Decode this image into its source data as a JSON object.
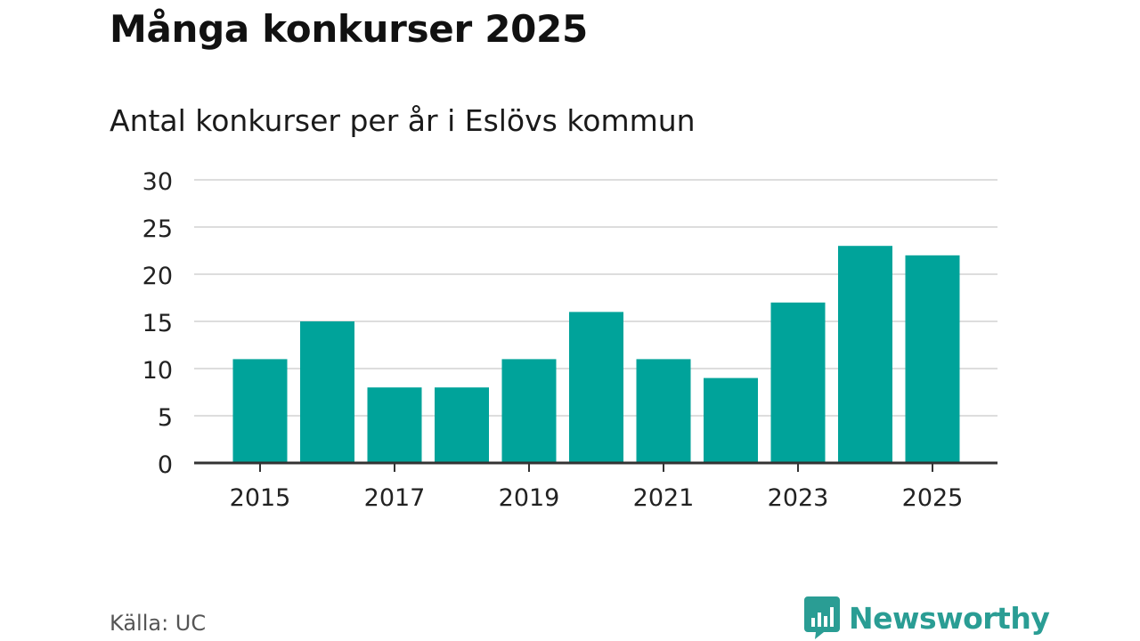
{
  "header": {
    "title": "Många konkurser 2025",
    "subtitle": "Antal konkurser per år i Eslövs kommun"
  },
  "footer": {
    "source": "Källa: UC",
    "brand_name": "Newsworthy"
  },
  "colors": {
    "bar": "#00a39a",
    "brand": "#2a9d94",
    "grid": "#dddddd",
    "axis": "#333333"
  },
  "chart_data": {
    "type": "bar",
    "title": "Många konkurser 2025",
    "subtitle": "Antal konkurser per år i Eslövs kommun",
    "categories": [
      "2015",
      "2016",
      "2017",
      "2018",
      "2019",
      "2020",
      "2021",
      "2022",
      "2023",
      "2024",
      "2025"
    ],
    "values": [
      11,
      15,
      8,
      8,
      11,
      16,
      11,
      9,
      17,
      23,
      22
    ],
    "x_tick_labels": [
      "2015",
      "2017",
      "2019",
      "2021",
      "2023",
      "2025"
    ],
    "y_ticks": [
      0,
      5,
      10,
      15,
      20,
      25,
      30
    ],
    "ylim": [
      0,
      30
    ],
    "xlabel": "",
    "ylabel": "",
    "grid": true,
    "legend": "none"
  }
}
